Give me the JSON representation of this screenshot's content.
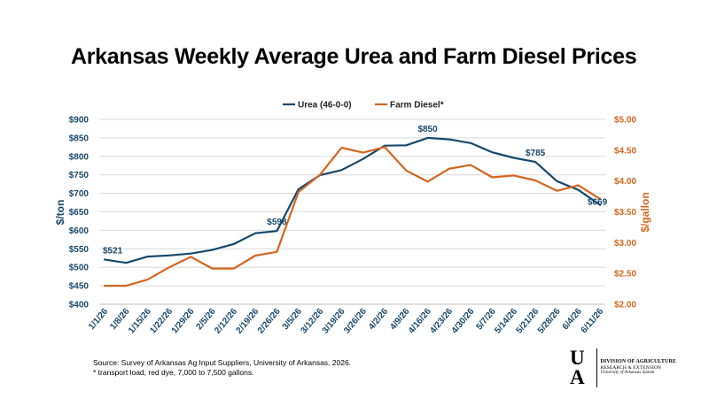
{
  "title": "Arkansas Weekly Average Urea and Farm Diesel Prices",
  "footnote": {
    "source": "Source: Survey of Arkansas Ag Input Suppliers, University of Arkansas, 2026.",
    "note": "* transport load, red dye, 7,000 to 7,500 gallons."
  },
  "logo": {
    "mark": "U A",
    "line1": "DIVISION OF AGRICULTURE",
    "line2": "RESEARCH & EXTENSION",
    "line3": "University of Arkansas System"
  },
  "colors": {
    "urea": "#17486b",
    "diesel": "#d4661e",
    "grid": "#d9d9d9"
  },
  "chart_data": {
    "type": "line",
    "title": "Arkansas Weekly Average Urea and Farm Diesel Prices",
    "legend_position": "top-center",
    "grid": true,
    "x": [
      "1/1/26",
      "1/8/26",
      "1/15/26",
      "1/22/26",
      "1/29/26",
      "2/5/26",
      "2/12/26",
      "2/19/26",
      "2/26/26",
      "3/5/26",
      "3/12/26",
      "3/19/26",
      "3/26/26",
      "4/2/26",
      "4/9/26",
      "4/16/26",
      "4/23/26",
      "4/30/26",
      "5/7/26",
      "5/14/26",
      "5/21/26",
      "5/28/26",
      "6/4/26",
      "6/11/26"
    ],
    "y_left": {
      "label": "$/ton",
      "range": [
        400,
        900
      ],
      "ticks": [
        "$400",
        "$450",
        "$500",
        "$550",
        "$600",
        "$650",
        "$700",
        "$750",
        "$800",
        "$850",
        "$900"
      ]
    },
    "y_right": {
      "label": "$/gallon",
      "range": [
        2.0,
        5.0
      ],
      "ticks": [
        "$2.00",
        "$2.50",
        "$3.00",
        "$3.50",
        "$4.00",
        "$4.50",
        "$5.00"
      ]
    },
    "series": [
      {
        "name": "Urea (46-0-0)",
        "axis": "left",
        "values": [
          521,
          512,
          529,
          532,
          537,
          547,
          563,
          592,
          598,
          711,
          749,
          763,
          793,
          829,
          830,
          850,
          846,
          836,
          811,
          796,
          785,
          733,
          709,
          669
        ],
        "labels": [
          {
            "index": 0,
            "text": "$521"
          },
          {
            "index": 8,
            "text": "$598"
          },
          {
            "index": 15,
            "text": "$850"
          },
          {
            "index": 20,
            "text": "$785"
          },
          {
            "index": 23,
            "text": "$669"
          }
        ]
      },
      {
        "name": "Farm Diesel*",
        "axis": "right",
        "values": [
          2.3,
          2.3,
          2.4,
          2.6,
          2.77,
          2.58,
          2.58,
          2.79,
          2.85,
          3.82,
          4.1,
          4.54,
          4.46,
          4.55,
          4.17,
          3.99,
          4.2,
          4.26,
          4.06,
          4.09,
          4.01,
          3.84,
          3.93,
          3.71
        ]
      }
    ]
  }
}
